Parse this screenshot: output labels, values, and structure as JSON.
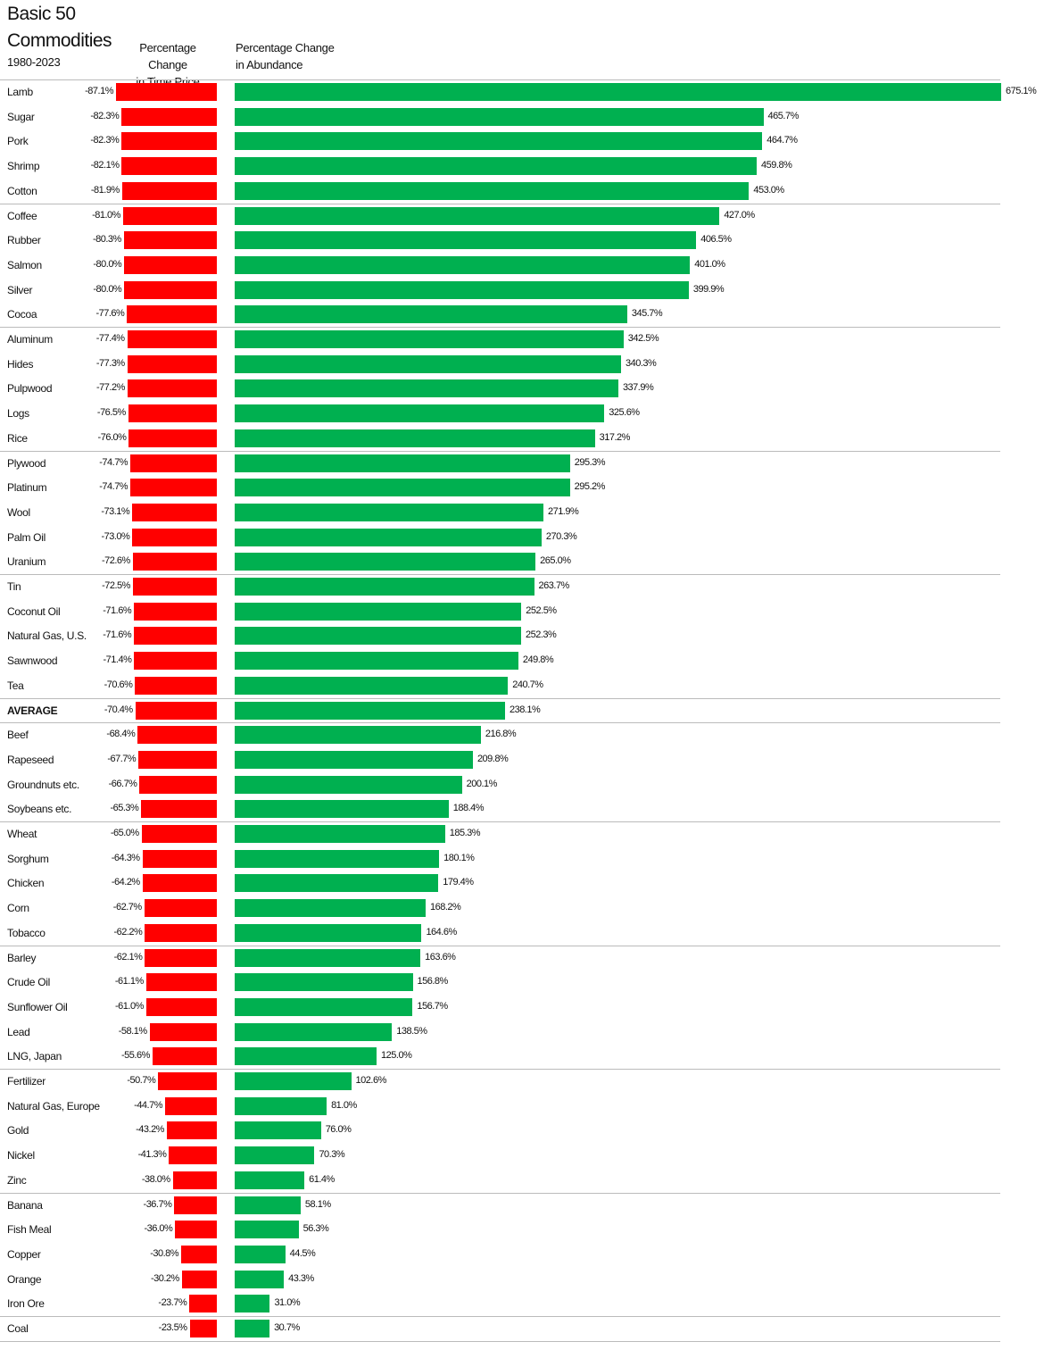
{
  "title_line1": "Basic 50",
  "title_line2": "Commodities",
  "subtitle": "1980-2023",
  "chart_data": {
    "type": "bar",
    "title": "Basic 50 Commodities 1980-2023",
    "series": [
      {
        "name": "Percentage Change in Time Price",
        "color": "#ff0000"
      },
      {
        "name": "Percentage Change in Abundance",
        "color": "#00b050"
      }
    ],
    "col1_header": [
      "Percentage Change",
      "in Time Price"
    ],
    "col2_header": [
      "Percentage Change",
      "in Abundance"
    ],
    "rows": [
      {
        "name": "Lamb",
        "price": -87.1,
        "abundance": 675.1
      },
      {
        "name": "Sugar",
        "price": -82.3,
        "abundance": 465.7
      },
      {
        "name": "Pork",
        "price": -82.3,
        "abundance": 464.7
      },
      {
        "name": "Shrimp",
        "price": -82.1,
        "abundance": 459.8
      },
      {
        "name": "Cotton",
        "price": -81.9,
        "abundance": 453.0
      },
      {
        "name": "Coffee",
        "price": -81.0,
        "abundance": 427.0
      },
      {
        "name": "Rubber",
        "price": -80.3,
        "abundance": 406.5
      },
      {
        "name": "Salmon",
        "price": -80.0,
        "abundance": 401.0
      },
      {
        "name": "Silver",
        "price": -80.0,
        "abundance": 399.9
      },
      {
        "name": "Cocoa",
        "price": -77.6,
        "abundance": 345.7
      },
      {
        "name": "Aluminum",
        "price": -77.4,
        "abundance": 342.5
      },
      {
        "name": "Hides",
        "price": -77.3,
        "abundance": 340.3
      },
      {
        "name": "Pulpwood",
        "price": -77.2,
        "abundance": 337.9
      },
      {
        "name": "Logs",
        "price": -76.5,
        "abundance": 325.6
      },
      {
        "name": "Rice",
        "price": -76.0,
        "abundance": 317.2
      },
      {
        "name": "Plywood",
        "price": -74.7,
        "abundance": 295.3
      },
      {
        "name": "Platinum",
        "price": -74.7,
        "abundance": 295.2
      },
      {
        "name": "Wool",
        "price": -73.1,
        "abundance": 271.9
      },
      {
        "name": "Palm Oil",
        "price": -73.0,
        "abundance": 270.3
      },
      {
        "name": "Uranium",
        "price": -72.6,
        "abundance": 265.0
      },
      {
        "name": "Tin",
        "price": -72.5,
        "abundance": 263.7
      },
      {
        "name": "Coconut Oil",
        "price": -71.6,
        "abundance": 252.5
      },
      {
        "name": "Natural Gas, U.S.",
        "price": -71.6,
        "abundance": 252.3
      },
      {
        "name": "Sawnwood",
        "price": -71.4,
        "abundance": 249.8
      },
      {
        "name": "Tea",
        "price": -70.6,
        "abundance": 240.7
      },
      {
        "name": "AVERAGE",
        "price": -70.4,
        "abundance": 238.1,
        "bold": true
      },
      {
        "name": "Beef",
        "price": -68.4,
        "abundance": 216.8
      },
      {
        "name": "Rapeseed",
        "price": -67.7,
        "abundance": 209.8
      },
      {
        "name": "Groundnuts etc.",
        "price": -66.7,
        "abundance": 200.1
      },
      {
        "name": "Soybeans etc.",
        "price": -65.3,
        "abundance": 188.4
      },
      {
        "name": "Wheat",
        "price": -65.0,
        "abundance": 185.3
      },
      {
        "name": "Sorghum",
        "price": -64.3,
        "abundance": 180.1
      },
      {
        "name": "Chicken",
        "price": -64.2,
        "abundance": 179.4
      },
      {
        "name": "Corn",
        "price": -62.7,
        "abundance": 168.2
      },
      {
        "name": "Tobacco",
        "price": -62.2,
        "abundance": 164.6
      },
      {
        "name": "Barley",
        "price": -62.1,
        "abundance": 163.6
      },
      {
        "name": "Crude Oil",
        "price": -61.1,
        "abundance": 156.8
      },
      {
        "name": "Sunflower Oil",
        "price": -61.0,
        "abundance": 156.7
      },
      {
        "name": "Lead",
        "price": -58.1,
        "abundance": 138.5
      },
      {
        "name": "LNG, Japan",
        "price": -55.6,
        "abundance": 125.0
      },
      {
        "name": "Fertilizer",
        "price": -50.7,
        "abundance": 102.6
      },
      {
        "name": "Natural Gas, Europe",
        "price": -44.7,
        "abundance": 81.0
      },
      {
        "name": "Gold",
        "price": -43.2,
        "abundance": 76.0
      },
      {
        "name": "Nickel",
        "price": -41.3,
        "abundance": 70.3
      },
      {
        "name": "Zinc",
        "price": -38.0,
        "abundance": 61.4
      },
      {
        "name": "Banana",
        "price": -36.7,
        "abundance": 58.1
      },
      {
        "name": "Fish Meal",
        "price": -36.0,
        "abundance": 56.3
      },
      {
        "name": "Copper",
        "price": -30.8,
        "abundance": 44.5
      },
      {
        "name": "Orange",
        "price": -30.2,
        "abundance": 43.3
      },
      {
        "name": "Iron Ore",
        "price": -23.7,
        "abundance": 31.0
      },
      {
        "name": "Coal",
        "price": -23.5,
        "abundance": 30.7
      }
    ]
  }
}
